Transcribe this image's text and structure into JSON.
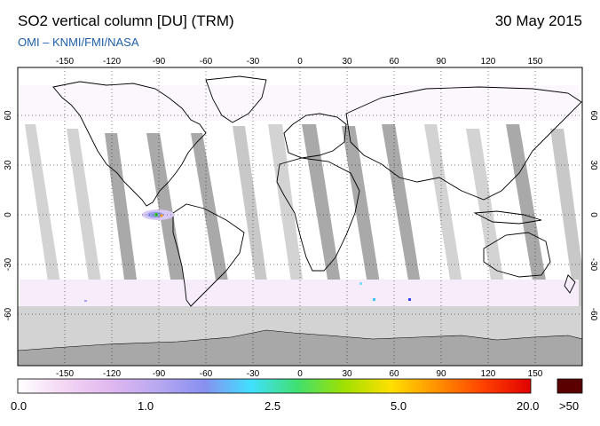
{
  "title": "SO2 vertical column [DU] (TRM)",
  "date": "30 May 2015",
  "source": "OMI  –  KNMI/FMI/NASA",
  "map": {
    "lon_ticks": [
      "-150",
      "-120",
      "-90",
      "-60",
      "-30",
      "0",
      "30",
      "60",
      "90",
      "120",
      "150"
    ],
    "lat_ticks": [
      "60",
      "30",
      "0",
      "-30",
      "-60"
    ],
    "colors": {
      "land_gray": "#c9c9c9",
      "swath_dark": "#a9a9a9",
      "swath_light": "#d3d3d3",
      "ocean": "#ffffff",
      "antarctica": "#a8a8a8",
      "coast": "#000000"
    }
  },
  "colorbar": {
    "labels": [
      "0.0",
      "1.0",
      "2.5",
      "5.0",
      "20.0"
    ],
    "over_label": ">50",
    "over_color": "#5a0000",
    "gradient": [
      "#ffffff",
      "#f3d6f3",
      "#e0b8f0",
      "#b8a8f0",
      "#8890f0",
      "#40e0ff",
      "#40e070",
      "#a0e000",
      "#ffe000",
      "#ff9000",
      "#ff4000",
      "#e00000"
    ]
  }
}
